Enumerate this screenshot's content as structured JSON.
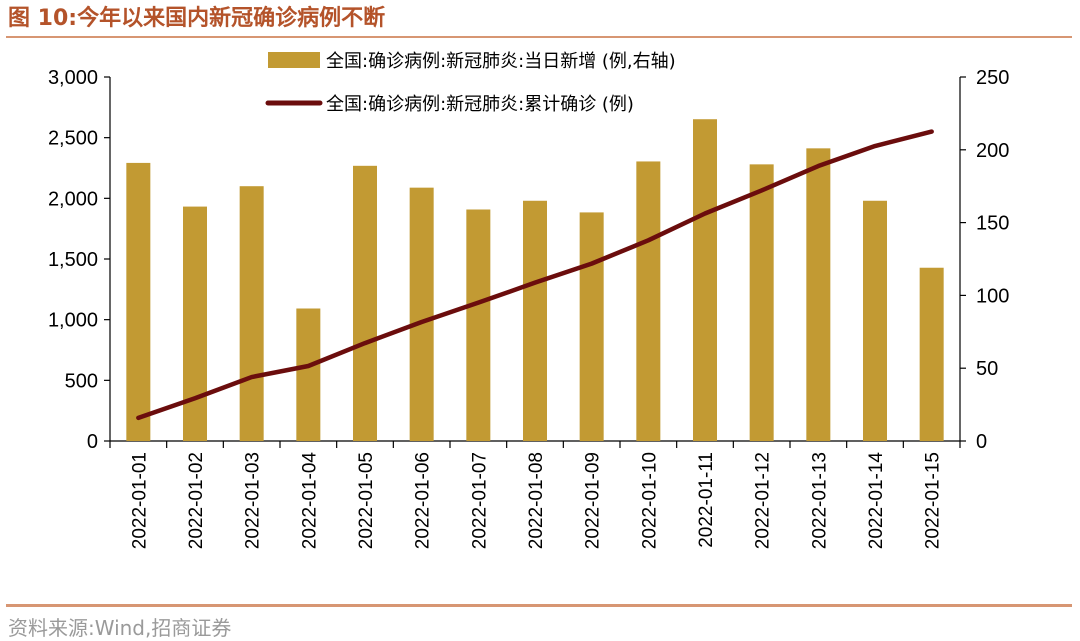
{
  "header": {
    "title": "图 10:今年以来国内新冠确诊病例不断"
  },
  "footer": {
    "source": "资料来源:Wind,招商证券"
  },
  "chart_data": {
    "type": "bar+line",
    "categories": [
      "2022-01-01",
      "2022-01-02",
      "2022-01-03",
      "2022-01-04",
      "2022-01-05",
      "2022-01-06",
      "2022-01-07",
      "2022-01-08",
      "2022-01-09",
      "2022-01-10",
      "2022-01-11",
      "2022-01-12",
      "2022-01-13",
      "2022-01-14",
      "2022-01-15"
    ],
    "series": [
      {
        "name": "全国:确诊病例:新冠肺炎:当日新增 (例,右轴)",
        "type": "bar",
        "axis": "right",
        "color": "#c29a33",
        "values": [
          191,
          161,
          175,
          91,
          189,
          174,
          159,
          165,
          157,
          192,
          221,
          190,
          201,
          165,
          119
        ]
      },
      {
        "name": "全国:确诊病例:新冠肺炎:累计确诊 (例)",
        "type": "line",
        "axis": "left",
        "color": "#6b0d0d",
        "values": [
          191,
          352,
          527,
          618,
          807,
          981,
          1140,
          1305,
          1462,
          1654,
          1875,
          2065,
          2266,
          2431,
          2550
        ]
      }
    ],
    "left_axis": {
      "min": 0,
      "max": 3000,
      "ticks": [
        0,
        500,
        1000,
        1500,
        2000,
        2500,
        3000
      ],
      "tick_labels": [
        "0",
        "500",
        "1,000",
        "1,500",
        "2,000",
        "2,500",
        "3,000"
      ]
    },
    "right_axis": {
      "min": 0,
      "max": 250,
      "ticks": [
        0,
        50,
        100,
        150,
        200,
        250
      ],
      "tick_labels": [
        "0",
        "50",
        "100",
        "150",
        "200",
        "250"
      ]
    },
    "legend_position": "top-center",
    "grid": false
  }
}
